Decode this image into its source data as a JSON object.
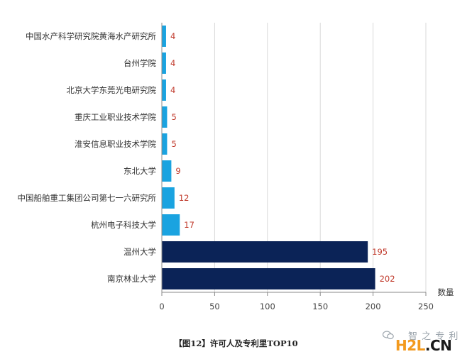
{
  "chart_data": {
    "type": "bar",
    "orientation": "horizontal",
    "categories": [
      "中国水产科学研究院黄海水产研究所",
      "台州学院",
      "北京大学东莞光电研究院",
      "重庆工业职业技术学院",
      "淮安信息职业技术学院",
      "东北大学",
      "中国船舶重工集团公司第七一六研究所",
      "杭州电子科技大学",
      "温州大学",
      "南京林业大学"
    ],
    "values": [
      4,
      4,
      4,
      5,
      5,
      9,
      12,
      17,
      195,
      202
    ],
    "bar_colors": [
      "#1aa3e0",
      "#1aa3e0",
      "#1aa3e0",
      "#1aa3e0",
      "#1aa3e0",
      "#1aa3e0",
      "#1aa3e0",
      "#1aa3e0",
      "#0b2357",
      "#0b2357"
    ],
    "value_label_color": "#c0392b",
    "xlabel": "数量",
    "xlim": [
      0,
      250
    ],
    "xticks": [
      0,
      50,
      100,
      150,
      200,
      250
    ],
    "grid": "vertical"
  },
  "caption": "【图12】许可人及专利里TOP10",
  "watermark": {
    "cn_text": "智 之 专 利",
    "brand_h2l": "H2L",
    "brand_cn": ".CN"
  }
}
